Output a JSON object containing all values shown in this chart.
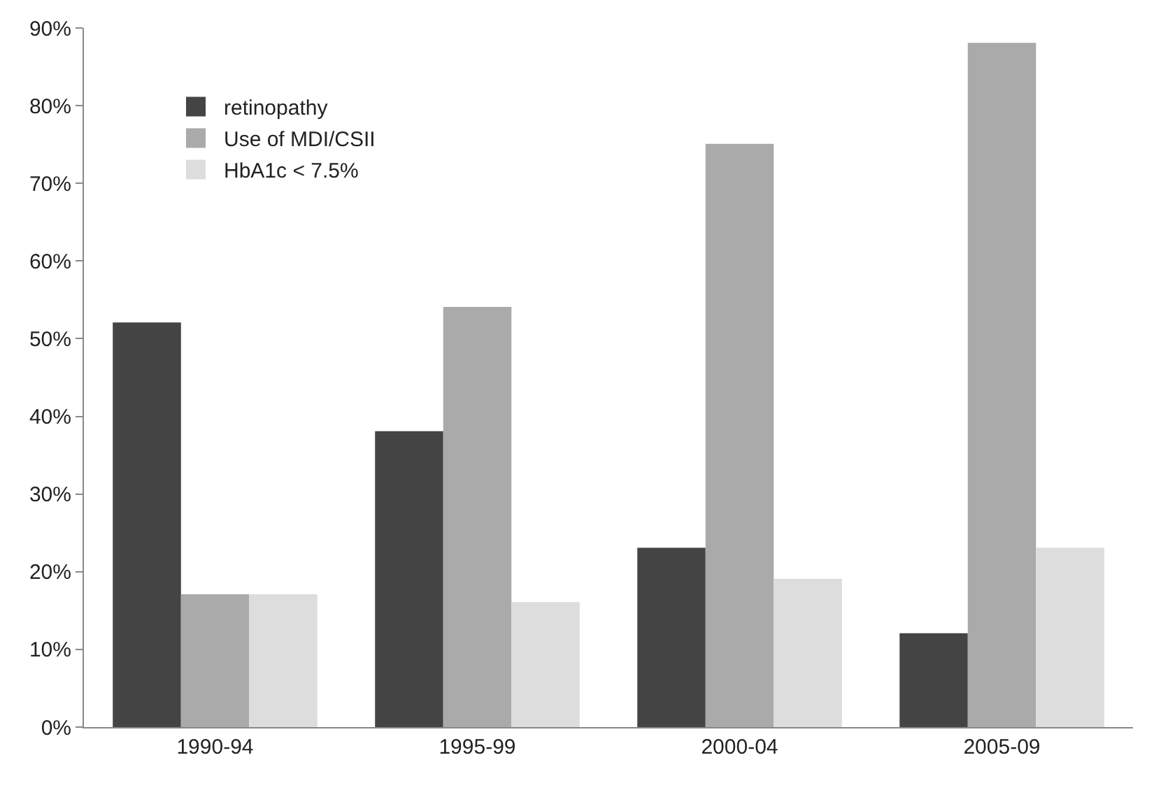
{
  "chart_data": {
    "type": "bar",
    "categories": [
      "1990-94",
      "1995-99",
      "2000-04",
      "2005-09"
    ],
    "series": [
      {
        "name": "retinopathy",
        "color": "#444444",
        "values": [
          52,
          38,
          23,
          12
        ]
      },
      {
        "name": "Use of MDI/CSII",
        "color": "#aaaaaa",
        "values": [
          17,
          54,
          75,
          88
        ]
      },
      {
        "name": "HbA1c < 7.5%",
        "color": "#dddddd",
        "values": [
          17,
          16,
          19,
          23
        ]
      }
    ],
    "ylim": [
      0,
      90
    ],
    "yticks": [
      {
        "value": 0,
        "label": "0%"
      },
      {
        "value": 10,
        "label": "10%"
      },
      {
        "value": 20,
        "label": "20%"
      },
      {
        "value": 30,
        "label": "30%"
      },
      {
        "value": 40,
        "label": "40%"
      },
      {
        "value": 50,
        "label": "50%"
      },
      {
        "value": 60,
        "label": "60%"
      },
      {
        "value": 70,
        "label": "70%"
      },
      {
        "value": 80,
        "label": "80%"
      },
      {
        "value": 90,
        "label": "90%"
      }
    ],
    "grid": false,
    "legend": "top left"
  }
}
